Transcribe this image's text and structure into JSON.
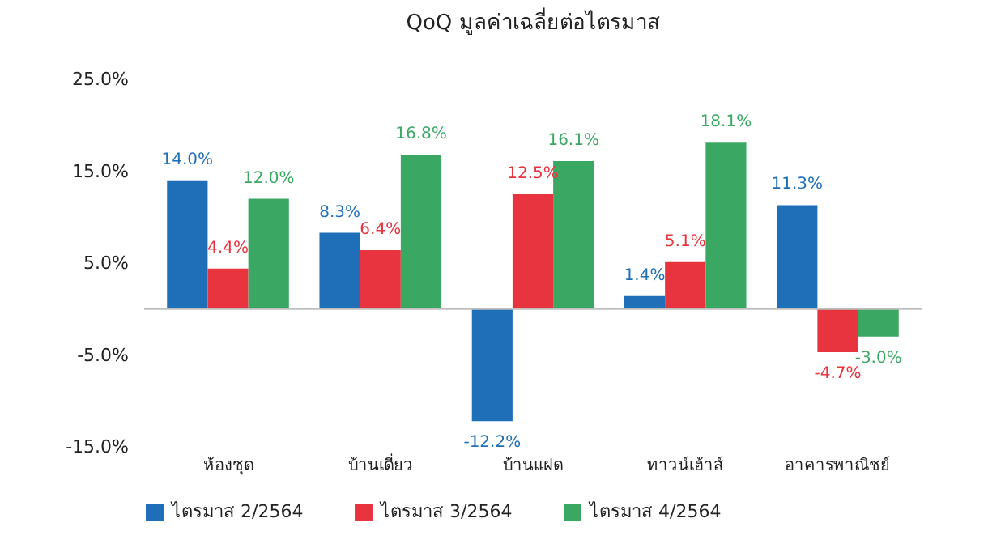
{
  "chart_data": {
    "type": "bar",
    "title": "QoQ มูลค่าเฉลี่ยต่อไตรมาส",
    "categories": [
      "ห้องชุด",
      "บ้านเดี่ยว",
      "บ้านแฝด",
      "ทาวน์เฮ้าส์",
      "อาคารพาณิชย์"
    ],
    "series": [
      {
        "name": "ไตรมาส 2/2564",
        "color": "#1f6fb8",
        "values": [
          14.0,
          8.3,
          -12.2,
          1.4,
          11.3
        ],
        "value_labels": [
          "14.0%",
          "8.3%",
          "-12.2%",
          "1.4%",
          "11.3%"
        ]
      },
      {
        "name": "ไตรมาส 3/2564",
        "color": "#e8343f",
        "values": [
          4.4,
          6.4,
          12.5,
          5.1,
          -4.7
        ],
        "value_labels": [
          "4.4%",
          "6.4%",
          "12.5%",
          "5.1%",
          "-4.7%"
        ]
      },
      {
        "name": "ไตรมาส 4/2564",
        "color": "#3aa863",
        "values": [
          12.0,
          16.8,
          16.1,
          18.1,
          -3.0
        ],
        "value_labels": [
          "12.0%",
          "16.8%",
          "16.1%",
          "18.1%",
          "-3.0%"
        ]
      }
    ],
    "ylim": [
      -15,
      25
    ],
    "yticks": [
      {
        "value": 25,
        "label": "25.0%"
      },
      {
        "value": 15,
        "label": "15.0%"
      },
      {
        "value": 5,
        "label": "5.0%"
      },
      {
        "value": -5,
        "label": "-5.0%"
      },
      {
        "value": -15,
        "label": "-15.0%"
      }
    ],
    "ref_lines": [
      {
        "axis": "y",
        "value": 0,
        "color": "#bfbfbf"
      }
    ],
    "grid": false,
    "legend": "bottom"
  }
}
